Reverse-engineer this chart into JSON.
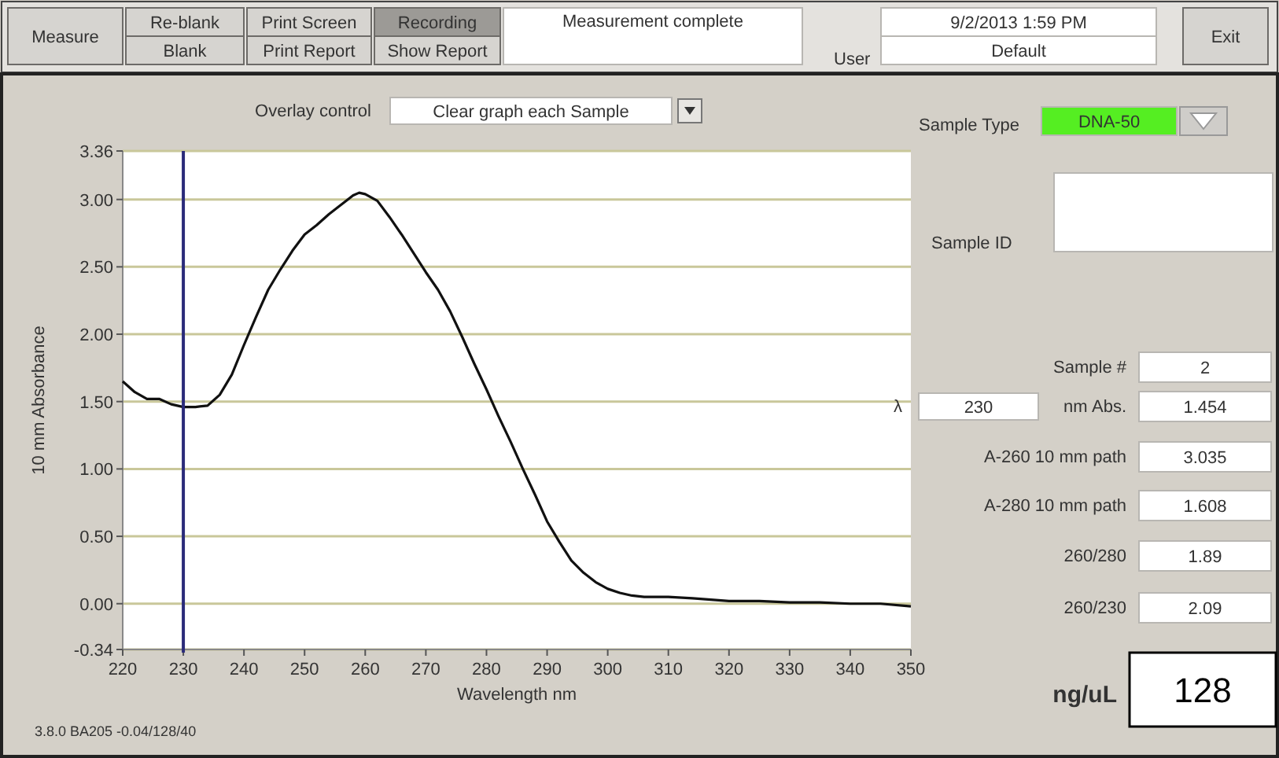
{
  "chart_data": {
    "type": "line",
    "xlabel": "Wavelength nm",
    "ylabel": "10 mm Absorbance",
    "x": [
      220,
      222,
      224,
      226,
      228,
      230,
      232,
      234,
      236,
      238,
      240,
      242,
      244,
      246,
      248,
      250,
      252,
      254,
      256,
      258,
      259,
      260,
      262,
      264,
      266,
      268,
      270,
      272,
      274,
      276,
      278,
      280,
      282,
      284,
      286,
      288,
      290,
      292,
      294,
      296,
      298,
      300,
      302,
      304,
      306,
      310,
      314,
      320,
      325,
      330,
      335,
      340,
      345,
      350
    ],
    "series": [
      {
        "color": "#111111",
        "values": [
          1.65,
          1.57,
          1.52,
          1.52,
          1.48,
          1.46,
          1.46,
          1.47,
          1.55,
          1.7,
          1.92,
          2.13,
          2.33,
          2.48,
          2.62,
          2.74,
          2.81,
          2.89,
          2.96,
          3.03,
          3.05,
          3.04,
          2.99,
          2.87,
          2.74,
          2.6,
          2.46,
          2.33,
          2.17,
          1.98,
          1.78,
          1.59,
          1.39,
          1.2,
          1.0,
          0.81,
          0.61,
          0.46,
          0.32,
          0.23,
          0.16,
          0.11,
          0.08,
          0.06,
          0.05,
          0.05,
          0.04,
          0.02,
          0.02,
          0.01,
          0.01,
          0.0,
          0.0,
          -0.02
        ]
      }
    ],
    "xlim": [
      220,
      350
    ],
    "ylim": [
      -0.34,
      3.36
    ],
    "xticks": [
      220,
      230,
      240,
      250,
      260,
      270,
      280,
      290,
      300,
      310,
      320,
      330,
      340,
      350
    ],
    "yticks": [
      {
        "value": -0.34,
        "label": "-0.34"
      },
      {
        "value": 0,
        "label": "0.00"
      },
      {
        "value": 0.5,
        "label": "0.50"
      },
      {
        "value": 1,
        "label": "1.00"
      },
      {
        "value": 1.5,
        "label": "1.50"
      },
      {
        "value": 2,
        "label": "2.00"
      },
      {
        "value": 2.5,
        "label": "2.50"
      },
      {
        "value": 3,
        "label": "3.00"
      },
      {
        "value": 3.36,
        "label": "3.36"
      }
    ],
    "grid": "y",
    "ref_lines": [
      {
        "axis": "x",
        "value": 230,
        "color": "#2b2b7a"
      }
    ],
    "annotations": [
      "Measure",
      "Re-blank",
      "Blank",
      "Print Screen",
      "Print Report",
      "Recording",
      "Show Report",
      "Measurement complete",
      "User",
      "9/2/2013 1:59 PM",
      "Default",
      "Exit",
      "Overlay control",
      "Clear graph each Sample",
      "Sample Type",
      "DNA-50",
      "Sample ID",
      "Sample #",
      "2",
      "λ",
      "230",
      "nm",
      "Abs.",
      "1.454",
      "A-260 10 mm path",
      "3.035",
      "A-280 10 mm path",
      "1.608",
      "260/280",
      "1.89",
      "260/230",
      "2.09",
      "ng/uL",
      "128",
      "3.8.0 BA205 -0.04/128/40"
    ]
  }
}
